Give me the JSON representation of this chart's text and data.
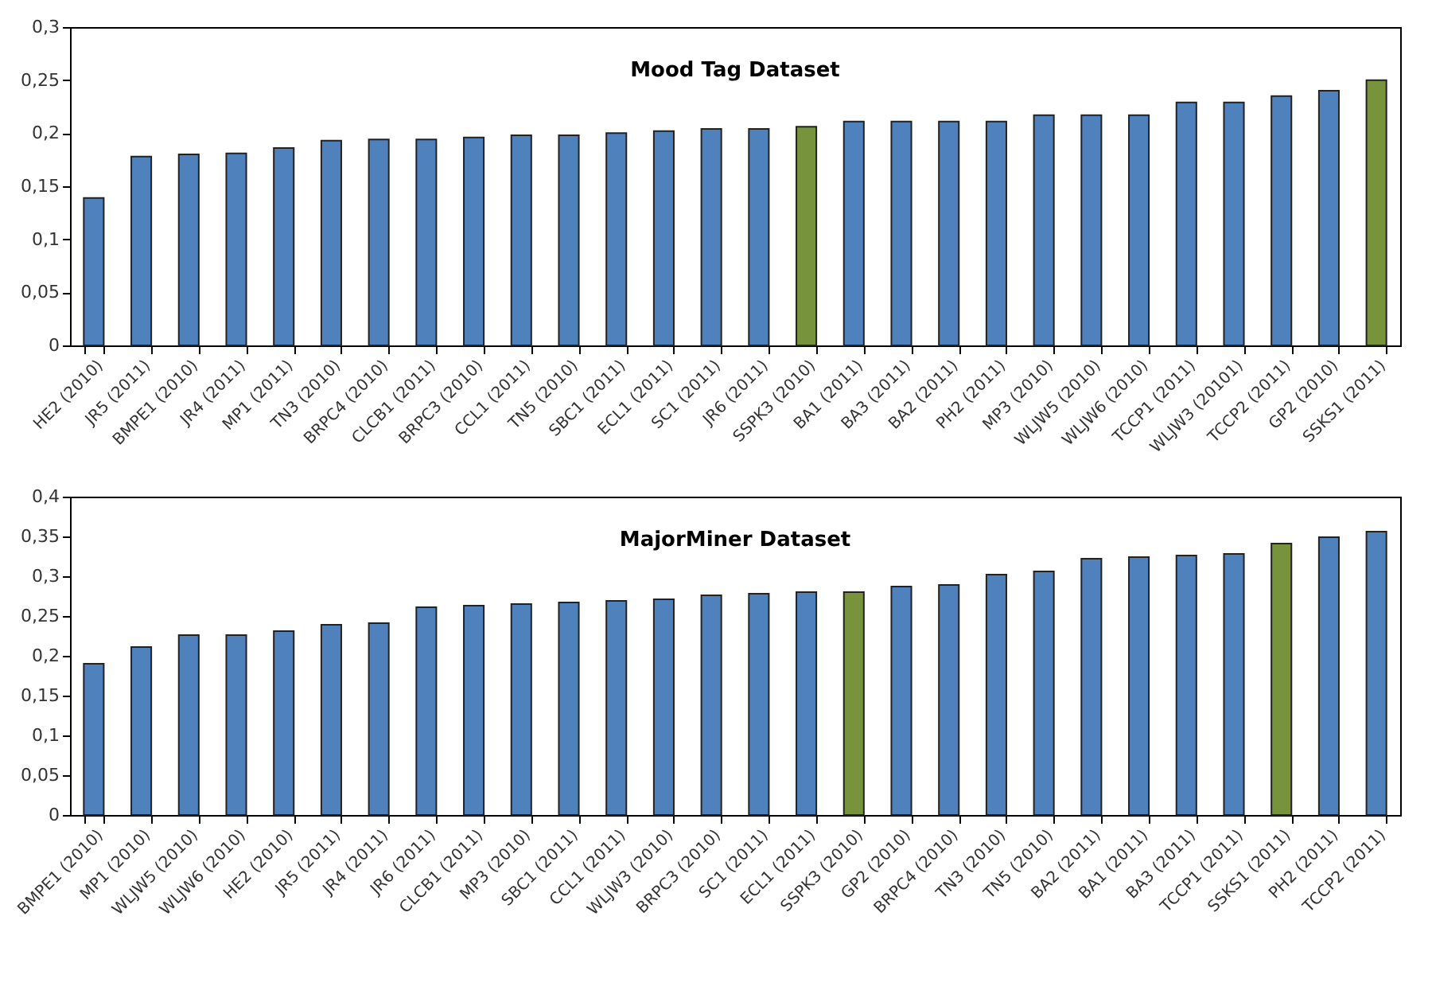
{
  "chart_data": [
    {
      "type": "bar",
      "title": "Mood Tag Dataset",
      "categories": [
        "HE2 (2010)",
        "JR5 (2011)",
        "BMPE1 (2010)",
        "JR4 (2011)",
        "MP1 (2011)",
        "TN3 (2010)",
        "BRPC4 (2010)",
        "CLCB1 (2011)",
        "BRPC3 (2010)",
        "CCL1 (2011)",
        "TN5 (2010)",
        "SBC1 (2011)",
        "ECL1 (2011)",
        "SC1 (2011)",
        "JR6 (2011)",
        "SSPK3 (2010)",
        "BA1 (2011)",
        "BA3 (2011)",
        "BA2 (2011)",
        "PH2 (2011)",
        "MP3 (2010)",
        "WLJW5 (2010)",
        "WLJW6 (2010)",
        "TCCP1 (2011)",
        "WLJW3 (20101)",
        "TCCP2 (2011)",
        "GP2 (2010)",
        "SSKS1 (2011)"
      ],
      "values": [
        0.139,
        0.178,
        0.18,
        0.181,
        0.186,
        0.193,
        0.194,
        0.194,
        0.196,
        0.198,
        0.198,
        0.2,
        0.202,
        0.204,
        0.204,
        0.206,
        0.211,
        0.211,
        0.211,
        0.211,
        0.217,
        0.217,
        0.217,
        0.229,
        0.229,
        0.235,
        0.24,
        0.25
      ],
      "colors": [
        "#4f81bd",
        "#4f81bd",
        "#4f81bd",
        "#4f81bd",
        "#4f81bd",
        "#4f81bd",
        "#4f81bd",
        "#4f81bd",
        "#4f81bd",
        "#4f81bd",
        "#4f81bd",
        "#4f81bd",
        "#4f81bd",
        "#4f81bd",
        "#4f81bd",
        "#77933c",
        "#4f81bd",
        "#4f81bd",
        "#4f81bd",
        "#4f81bd",
        "#4f81bd",
        "#4f81bd",
        "#4f81bd",
        "#4f81bd",
        "#4f81bd",
        "#4f81bd",
        "#4f81bd",
        "#77933c"
      ],
      "ylim": [
        0,
        0.3
      ],
      "yticks": [
        {
          "value": 0,
          "label": "0"
        },
        {
          "value": 0.05,
          "label": "0,05"
        },
        {
          "value": 0.1,
          "label": "0,1"
        },
        {
          "value": 0.15,
          "label": "0,15"
        },
        {
          "value": 0.2,
          "label": "0,2"
        },
        {
          "value": 0.25,
          "label": "0,25"
        },
        {
          "value": 0.3,
          "label": "0,3"
        }
      ],
      "grid": false
    },
    {
      "type": "bar",
      "title": "MajorMiner Dataset",
      "categories": [
        "BMPE1 (2010)",
        "MP1 (2010)",
        "WLJW5 (2010)",
        "WLJW6 (2010)",
        "HE2 (2010)",
        "JR5 (2011)",
        "JR4 (2011)",
        "JR6 (2011)",
        "CLCB1 (2011)",
        "MP3 (2010)",
        "SBC1 (2011)",
        "CCL1 (2011)",
        "WLJW3 (2010)",
        "BRPC3 (2010)",
        "SC1 (2011)",
        "ECL1 (2011)",
        "SSPK3 (2010)",
        "GP2 (2010)",
        "BRPC4 (2010)",
        "TN3 (2010)",
        "TN5 (2010)",
        "BA2 (2011)",
        "BA1 (2011)",
        "BA3 (2011)",
        "TCCP1 (2011)",
        "SSKS1 (2011)",
        "PH2 (2011)",
        "TCCP2 (2011)"
      ],
      "values": [
        0.19,
        0.211,
        0.226,
        0.226,
        0.231,
        0.239,
        0.241,
        0.261,
        0.263,
        0.265,
        0.267,
        0.269,
        0.271,
        0.276,
        0.278,
        0.28,
        0.28,
        0.287,
        0.289,
        0.302,
        0.306,
        0.322,
        0.324,
        0.326,
        0.328,
        0.341,
        0.349,
        0.356
      ],
      "colors": [
        "#4f81bd",
        "#4f81bd",
        "#4f81bd",
        "#4f81bd",
        "#4f81bd",
        "#4f81bd",
        "#4f81bd",
        "#4f81bd",
        "#4f81bd",
        "#4f81bd",
        "#4f81bd",
        "#4f81bd",
        "#4f81bd",
        "#4f81bd",
        "#4f81bd",
        "#4f81bd",
        "#77933c",
        "#4f81bd",
        "#4f81bd",
        "#4f81bd",
        "#4f81bd",
        "#4f81bd",
        "#4f81bd",
        "#4f81bd",
        "#4f81bd",
        "#77933c",
        "#4f81bd",
        "#4f81bd"
      ],
      "ylim": [
        0,
        0.4
      ],
      "yticks": [
        {
          "value": 0,
          "label": "0"
        },
        {
          "value": 0.05,
          "label": "0,05"
        },
        {
          "value": 0.1,
          "label": "0,1"
        },
        {
          "value": 0.15,
          "label": "0,15"
        },
        {
          "value": 0.2,
          "label": "0,2"
        },
        {
          "value": 0.25,
          "label": "0,25"
        },
        {
          "value": 0.3,
          "label": "0,3"
        },
        {
          "value": 0.35,
          "label": "0,35"
        },
        {
          "value": 0.4,
          "label": "0,4"
        }
      ],
      "grid": false
    }
  ]
}
